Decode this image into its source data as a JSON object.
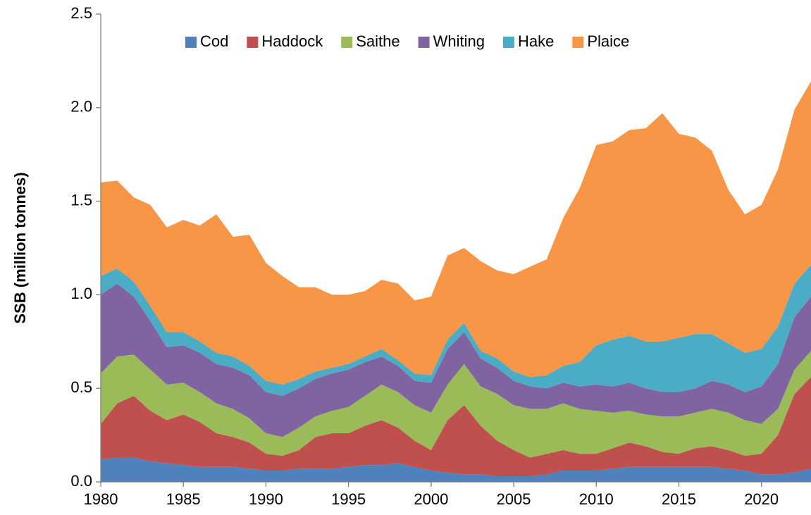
{
  "chart_data": {
    "type": "stacked_area",
    "y_label": "SSB (million tonnes)",
    "x": [
      1980,
      1981,
      1982,
      1983,
      1984,
      1985,
      1986,
      1987,
      1988,
      1989,
      1990,
      1991,
      1992,
      1993,
      1994,
      1995,
      1996,
      1997,
      1998,
      1999,
      2000,
      2001,
      2002,
      2003,
      2004,
      2005,
      2006,
      2007,
      2008,
      2009,
      2010,
      2011,
      2012,
      2013,
      2014,
      2015,
      2016,
      2017,
      2018,
      2019,
      2020,
      2021,
      2022,
      2023
    ],
    "xlim": [
      1980,
      2023
    ],
    "xticks": [
      1980,
      1985,
      1990,
      1995,
      2000,
      2005,
      2010,
      2015,
      2020
    ],
    "ylim": [
      0,
      2.5
    ],
    "yticks": [
      {
        "value": 0,
        "label": "0.0"
      },
      0.5,
      {
        "value": 1,
        "label": "1.0"
      },
      1.5,
      {
        "value": 2,
        "label": "2.0"
      },
      2.5
    ],
    "legend": "top",
    "series": [
      {
        "name": "Cod",
        "color": "#4f81bd",
        "values": [
          0.12,
          0.13,
          0.13,
          0.11,
          0.1,
          0.09,
          0.08,
          0.08,
          0.08,
          0.07,
          0.06,
          0.06,
          0.07,
          0.07,
          0.07,
          0.08,
          0.09,
          0.09,
          0.1,
          0.08,
          0.06,
          0.05,
          0.04,
          0.04,
          0.03,
          0.03,
          0.03,
          0.04,
          0.06,
          0.06,
          0.06,
          0.07,
          0.08,
          0.08,
          0.08,
          0.08,
          0.08,
          0.08,
          0.07,
          0.06,
          0.04,
          0.04,
          0.05,
          0.07
        ]
      },
      {
        "name": "Haddock",
        "color": "#c0504d",
        "values": [
          0.19,
          0.29,
          0.33,
          0.27,
          0.23,
          0.27,
          0.24,
          0.18,
          0.16,
          0.14,
          0.09,
          0.08,
          0.1,
          0.17,
          0.19,
          0.18,
          0.21,
          0.24,
          0.19,
          0.14,
          0.11,
          0.28,
          0.37,
          0.26,
          0.19,
          0.14,
          0.1,
          0.11,
          0.11,
          0.09,
          0.09,
          0.11,
          0.13,
          0.11,
          0.08,
          0.07,
          0.1,
          0.11,
          0.1,
          0.08,
          0.11,
          0.21,
          0.42,
          0.49
        ]
      },
      {
        "name": "Saithe",
        "color": "#9bbb59",
        "values": [
          0.27,
          0.25,
          0.22,
          0.22,
          0.19,
          0.17,
          0.16,
          0.16,
          0.15,
          0.13,
          0.11,
          0.1,
          0.12,
          0.11,
          0.12,
          0.14,
          0.16,
          0.19,
          0.19,
          0.19,
          0.2,
          0.19,
          0.22,
          0.21,
          0.25,
          0.24,
          0.26,
          0.24,
          0.25,
          0.24,
          0.23,
          0.19,
          0.17,
          0.17,
          0.19,
          0.2,
          0.19,
          0.2,
          0.2,
          0.19,
          0.16,
          0.14,
          0.13,
          0.14
        ]
      },
      {
        "name": "Whiting",
        "color": "#8064a2",
        "values": [
          0.42,
          0.39,
          0.31,
          0.26,
          0.2,
          0.2,
          0.21,
          0.21,
          0.22,
          0.23,
          0.22,
          0.22,
          0.21,
          0.2,
          0.2,
          0.2,
          0.18,
          0.15,
          0.14,
          0.13,
          0.16,
          0.19,
          0.17,
          0.15,
          0.14,
          0.13,
          0.12,
          0.11,
          0.11,
          0.12,
          0.14,
          0.14,
          0.15,
          0.14,
          0.13,
          0.13,
          0.13,
          0.15,
          0.15,
          0.15,
          0.2,
          0.24,
          0.28,
          0.29
        ]
      },
      {
        "name": "Hake",
        "color": "#4bacc6",
        "values": [
          0.1,
          0.08,
          0.08,
          0.08,
          0.08,
          0.07,
          0.06,
          0.06,
          0.06,
          0.05,
          0.06,
          0.06,
          0.05,
          0.04,
          0.03,
          0.03,
          0.03,
          0.04,
          0.03,
          0.04,
          0.04,
          0.05,
          0.05,
          0.04,
          0.05,
          0.05,
          0.05,
          0.07,
          0.09,
          0.13,
          0.21,
          0.25,
          0.25,
          0.25,
          0.27,
          0.29,
          0.29,
          0.25,
          0.22,
          0.21,
          0.2,
          0.2,
          0.18,
          0.17
        ]
      },
      {
        "name": "Plaice",
        "color": "#f79646",
        "values": [
          0.5,
          0.47,
          0.45,
          0.54,
          0.56,
          0.6,
          0.62,
          0.74,
          0.64,
          0.7,
          0.63,
          0.58,
          0.49,
          0.45,
          0.39,
          0.37,
          0.35,
          0.37,
          0.41,
          0.39,
          0.42,
          0.45,
          0.4,
          0.48,
          0.47,
          0.52,
          0.59,
          0.62,
          0.79,
          0.93,
          1.07,
          1.06,
          1.1,
          1.14,
          1.22,
          1.09,
          1.05,
          0.98,
          0.82,
          0.74,
          0.77,
          0.84,
          0.93,
          0.98
        ]
      }
    ]
  }
}
